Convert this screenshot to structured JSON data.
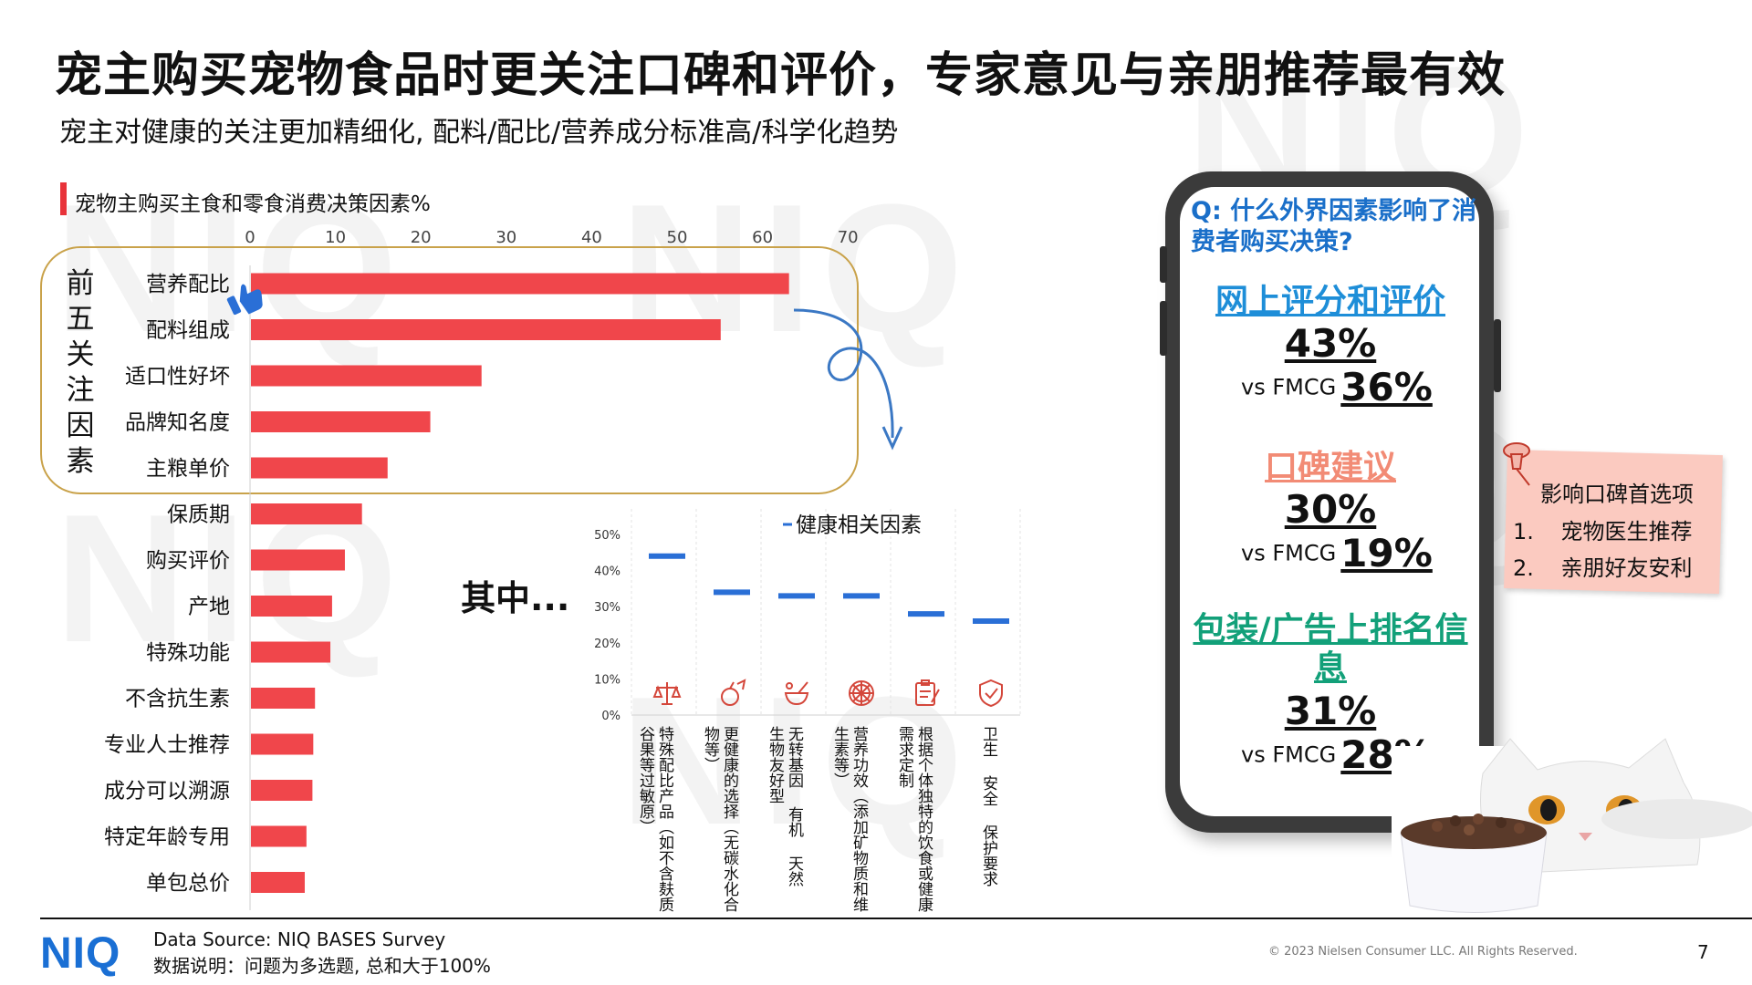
{
  "title": "宠主购买宠物食品时更关注口碑和评价，专家意见与亲朋推荐最有效",
  "subtitle": "宠主对健康的关注更加精细化, 配料/配比/营养成分标准高/科学化趋势",
  "watermark_text": "NIQ",
  "top5_label": [
    "前",
    "五",
    "关",
    "注",
    "因",
    "素"
  ],
  "qimin_text": "其中...",
  "colors": {
    "bar": "#f0464b",
    "title_text": "#111111",
    "accent_blue": "#1a6fc9",
    "online_blue": "#1e8ed8",
    "wom_salmon": "#f28b75",
    "pack_green": "#12a079",
    "health_bar": "#2a6fd6",
    "note_bg": "#fbcac0",
    "box_border": "#c9a24a",
    "logo": "#1a6fd4"
  },
  "chart_data": [
    {
      "type": "bar",
      "orientation": "horizontal",
      "title": "宠物主购买主食和零食消费决策因素%",
      "categories": [
        "营养配比",
        "配料组成",
        "适口性好坏",
        "品牌知名度",
        "主粮单价",
        "保质期",
        "购买评价",
        "产地",
        "特殊功能",
        "不含抗生素",
        "专业人士推荐",
        "成分可以溯源",
        "特定年龄专用",
        "单包总价"
      ],
      "values": [
        63,
        55,
        27,
        21,
        16,
        13,
        11,
        9.5,
        9.3,
        7.5,
        7.3,
        7.2,
        6.5,
        6.3
      ],
      "xlim": [
        0,
        70
      ],
      "xticks": [
        0,
        10,
        20,
        30,
        40,
        50,
        60,
        70
      ],
      "axis_position": "top"
    },
    {
      "type": "bar",
      "title": "健康相关因素",
      "legend": "健康相关因素",
      "categories": [
        "特殊配比产品（如不含麸质谷果等过敏原）",
        "更健康的选择（无碳水化合物等）",
        "无转基因 有机 天然 生物友好型",
        "营养功效（添加矿物质和维生素等）",
        "根据个体独特的饮食或健康需求定制",
        "卫生 安全 保护要求"
      ],
      "icons": [
        "scale-icon",
        "apple-icon",
        "mortar-icon",
        "citrus-icon",
        "clipboard-icon",
        "shield-check-icon"
      ],
      "values": [
        44,
        34,
        33,
        33,
        28,
        26
      ],
      "ylim": [
        0,
        50
      ],
      "yticks": [
        "0%",
        "10%",
        "20%",
        "30%",
        "40%",
        "50%"
      ],
      "legend_position": "top-right"
    }
  ],
  "phone": {
    "question": "Q: 什么外界因素影响了消费者购买决策?",
    "stats": [
      {
        "label": "网上评分和评价",
        "pct": "43%",
        "vs_label": "vs FMCG",
        "vs_value": "36%",
        "color": "#1e8ed8"
      },
      {
        "label": "口碑建议",
        "pct": "30%",
        "vs_label": "vs FMCG",
        "vs_value": "19%",
        "color": "#f28b75"
      },
      {
        "label": "包装/广告上排名信息",
        "pct": "31%",
        "vs_label": "vs FMCG",
        "vs_value": "28%",
        "color": "#12a079"
      }
    ]
  },
  "note": {
    "title": "影响口碑首选项",
    "items": [
      {
        "num": "1.",
        "text": "宠物医生推荐"
      },
      {
        "num": "2.",
        "text": "亲朋好友安利"
      }
    ]
  },
  "footer": {
    "logo": "NIQ",
    "source": "Data Source: NIQ BASES Survey",
    "note": "数据说明：问题为多选题, 总和大于100%",
    "copyright": "© 2023 Nielsen Consumer LLC. All Rights Reserved.",
    "page": "7"
  }
}
